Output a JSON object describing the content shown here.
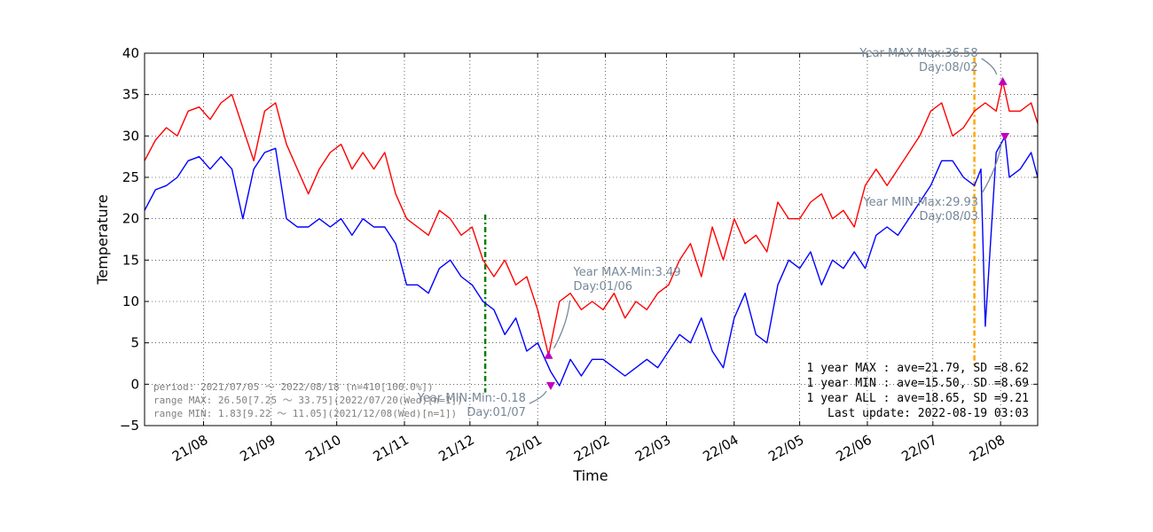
{
  "chart_data": {
    "type": "line",
    "title": "",
    "xlabel": "Time",
    "ylabel": "Temperature",
    "ylim": [
      -5,
      40
    ],
    "yticks": [
      -5,
      0,
      5,
      10,
      15,
      20,
      25,
      30,
      35,
      40
    ],
    "ytick_labels": [
      "−5",
      "0",
      "5",
      "10",
      "15",
      "20",
      "25",
      "30",
      "35",
      "40"
    ],
    "xlim": [
      "2021-07-05",
      "2022-08-18"
    ],
    "xticks": [
      {
        "date": "2021-08-01",
        "label": "21/08"
      },
      {
        "date": "2021-09-01",
        "label": "21/09"
      },
      {
        "date": "2021-10-01",
        "label": "21/10"
      },
      {
        "date": "2021-11-01",
        "label": "21/11"
      },
      {
        "date": "2021-12-01",
        "label": "21/12"
      },
      {
        "date": "2022-01-01",
        "label": "22/01"
      },
      {
        "date": "2022-02-01",
        "label": "22/02"
      },
      {
        "date": "2022-03-01",
        "label": "22/03"
      },
      {
        "date": "2022-04-01",
        "label": "22/04"
      },
      {
        "date": "2022-05-01",
        "label": "22/05"
      },
      {
        "date": "2022-06-01",
        "label": "22/06"
      },
      {
        "date": "2022-07-01",
        "label": "22/07"
      },
      {
        "date": "2022-08-01",
        "label": "22/08"
      }
    ],
    "grid": true,
    "series": [
      {
        "color": "#ff0000",
        "x": [
          "2021-07-05",
          "2021-07-10",
          "2021-07-15",
          "2021-07-20",
          "2021-07-25",
          "2021-07-30",
          "2021-08-04",
          "2021-08-09",
          "2021-08-14",
          "2021-08-19",
          "2021-08-24",
          "2021-08-29",
          "2021-09-03",
          "2021-09-08",
          "2021-09-13",
          "2021-09-18",
          "2021-09-23",
          "2021-09-28",
          "2021-10-03",
          "2021-10-08",
          "2021-10-13",
          "2021-10-18",
          "2021-10-23",
          "2021-10-28",
          "2021-11-02",
          "2021-11-07",
          "2021-11-12",
          "2021-11-17",
          "2021-11-22",
          "2021-11-27",
          "2021-12-02",
          "2021-12-07",
          "2021-12-12",
          "2021-12-17",
          "2021-12-22",
          "2021-12-27",
          "2022-01-01",
          "2022-01-06",
          "2022-01-11",
          "2022-01-16",
          "2022-01-21",
          "2022-01-26",
          "2022-01-31",
          "2022-02-05",
          "2022-02-10",
          "2022-02-15",
          "2022-02-20",
          "2022-02-25",
          "2022-03-02",
          "2022-03-07",
          "2022-03-12",
          "2022-03-17",
          "2022-03-22",
          "2022-03-27",
          "2022-04-01",
          "2022-04-06",
          "2022-04-11",
          "2022-04-16",
          "2022-04-21",
          "2022-04-26",
          "2022-05-01",
          "2022-05-06",
          "2022-05-11",
          "2022-05-16",
          "2022-05-21",
          "2022-05-26",
          "2022-05-31",
          "2022-06-05",
          "2022-06-10",
          "2022-06-15",
          "2022-06-20",
          "2022-06-25",
          "2022-06-30",
          "2022-07-05",
          "2022-07-10",
          "2022-07-15",
          "2022-07-20",
          "2022-07-25",
          "2022-07-30",
          "2022-08-02",
          "2022-08-05",
          "2022-08-10",
          "2022-08-15",
          "2022-08-18"
        ],
        "values": [
          27,
          29.5,
          31,
          30,
          33,
          33.5,
          32,
          34,
          35,
          31,
          27,
          33,
          34,
          29,
          26,
          23,
          26,
          28,
          29,
          26,
          28,
          26,
          28,
          23,
          20,
          19,
          18,
          21,
          20,
          18,
          19,
          15,
          13,
          15,
          12,
          13,
          9,
          3.49,
          10,
          11,
          9,
          10,
          9,
          11,
          8,
          10,
          9,
          11,
          12,
          15,
          17,
          13,
          19,
          15,
          20,
          17,
          18,
          16,
          22,
          20,
          20,
          22,
          23,
          20,
          21,
          19,
          24,
          26,
          24,
          26,
          28,
          30,
          33,
          34,
          30,
          31,
          33,
          34,
          33,
          36.58,
          33,
          33,
          34,
          31.5
        ]
      },
      {
        "color": "#0000ff",
        "x": [
          "2021-07-05",
          "2021-07-10",
          "2021-07-15",
          "2021-07-20",
          "2021-07-25",
          "2021-07-30",
          "2021-08-04",
          "2021-08-09",
          "2021-08-14",
          "2021-08-19",
          "2021-08-24",
          "2021-08-29",
          "2021-09-03",
          "2021-09-08",
          "2021-09-13",
          "2021-09-18",
          "2021-09-23",
          "2021-09-28",
          "2021-10-03",
          "2021-10-08",
          "2021-10-13",
          "2021-10-18",
          "2021-10-23",
          "2021-10-28",
          "2021-11-02",
          "2021-11-07",
          "2021-11-12",
          "2021-11-17",
          "2021-11-22",
          "2021-11-27",
          "2021-12-02",
          "2021-12-07",
          "2021-12-12",
          "2021-12-17",
          "2021-12-22",
          "2021-12-27",
          "2022-01-01",
          "2022-01-07",
          "2022-01-11",
          "2022-01-16",
          "2022-01-21",
          "2022-01-26",
          "2022-01-31",
          "2022-02-05",
          "2022-02-10",
          "2022-02-15",
          "2022-02-20",
          "2022-02-25",
          "2022-03-02",
          "2022-03-07",
          "2022-03-12",
          "2022-03-17",
          "2022-03-22",
          "2022-03-27",
          "2022-04-01",
          "2022-04-06",
          "2022-04-11",
          "2022-04-16",
          "2022-04-21",
          "2022-04-26",
          "2022-05-01",
          "2022-05-06",
          "2022-05-11",
          "2022-05-16",
          "2022-05-21",
          "2022-05-26",
          "2022-05-31",
          "2022-06-05",
          "2022-06-10",
          "2022-06-15",
          "2022-06-20",
          "2022-06-25",
          "2022-06-30",
          "2022-07-05",
          "2022-07-10",
          "2022-07-15",
          "2022-07-20",
          "2022-07-23",
          "2022-07-25",
          "2022-07-30",
          "2022-08-03",
          "2022-08-05",
          "2022-08-10",
          "2022-08-15",
          "2022-08-18"
        ],
        "values": [
          21,
          23.5,
          24,
          25,
          27,
          27.5,
          26,
          27.5,
          26,
          20,
          26,
          28,
          28.5,
          20,
          19,
          19,
          20,
          19,
          20,
          18,
          20,
          19,
          19,
          17,
          12,
          12,
          11,
          14,
          15,
          13,
          12,
          10,
          9,
          6,
          8,
          4,
          5,
          1.5,
          -0.18,
          3,
          1,
          3,
          3,
          2,
          1,
          2,
          3,
          2,
          4,
          6,
          5,
          8,
          4,
          2,
          8,
          11,
          6,
          5,
          12,
          15,
          14,
          16,
          12,
          15,
          14,
          16,
          14,
          18,
          19,
          18,
          20,
          22,
          24,
          27,
          27,
          25,
          24,
          26,
          7,
          28,
          29.93,
          25,
          26,
          28,
          25
        ]
      }
    ],
    "vlines": [
      {
        "date": "2021-12-08",
        "ymin": -1,
        "ymax": 20.5,
        "color": "#008000"
      },
      {
        "date": "2022-07-20",
        "ymin": 2,
        "ymax": 39.5,
        "color": "#ffa500"
      }
    ],
    "markers": [
      {
        "date": "2022-01-06",
        "value": 3.49,
        "shape": "triangle-up",
        "color": "#bf00bf"
      },
      {
        "date": "2022-01-07",
        "value": -0.18,
        "shape": "triangle-down",
        "color": "#bf00bf"
      },
      {
        "date": "2022-08-02",
        "value": 36.58,
        "shape": "triangle-up",
        "color": "#bf00bf"
      },
      {
        "date": "2022-08-03",
        "value": 29.93,
        "shape": "triangle-down",
        "color": "#bf00bf"
      }
    ],
    "annotations": [
      {
        "lines": [
          "Year MAX-Min:3.49",
          "Day:01/06"
        ],
        "target": {
          "date": "2022-01-06",
          "value": 3.49
        },
        "color": "#778899"
      },
      {
        "lines": [
          "Year MIN-Min:-0.18",
          "Day:01/07"
        ],
        "target": {
          "date": "2022-01-07",
          "value": -0.18
        },
        "color": "#778899"
      },
      {
        "lines": [
          "Year MAX-Max:36.58",
          "Day:08/02"
        ],
        "target": {
          "date": "2022-08-02",
          "value": 36.58
        },
        "color": "#778899"
      },
      {
        "lines": [
          "Year MIN-Max:29.93",
          "Day:08/03"
        ],
        "target": {
          "date": "2022-08-03",
          "value": 29.93
        },
        "color": "#778899"
      }
    ],
    "info_left": [
      "period: 2021/07/05 〜 2022/08/18 (n=410[100.0%])",
      "range MAX: 26.50[7.25 〜 33.75](2022/07/20(Wed)[n=1])",
      "range MIN: 1.83[9.22 〜 11.05](2021/12/08(Wed)[n=1])"
    ],
    "info_right": [
      "1 year MAX : ave=21.79, SD =8.62",
      "1 year MIN : ave=15.50, SD =8.69",
      "1 year ALL : ave=18.65, SD =9.21",
      "Last update: 2022-08-19 03:03"
    ]
  }
}
